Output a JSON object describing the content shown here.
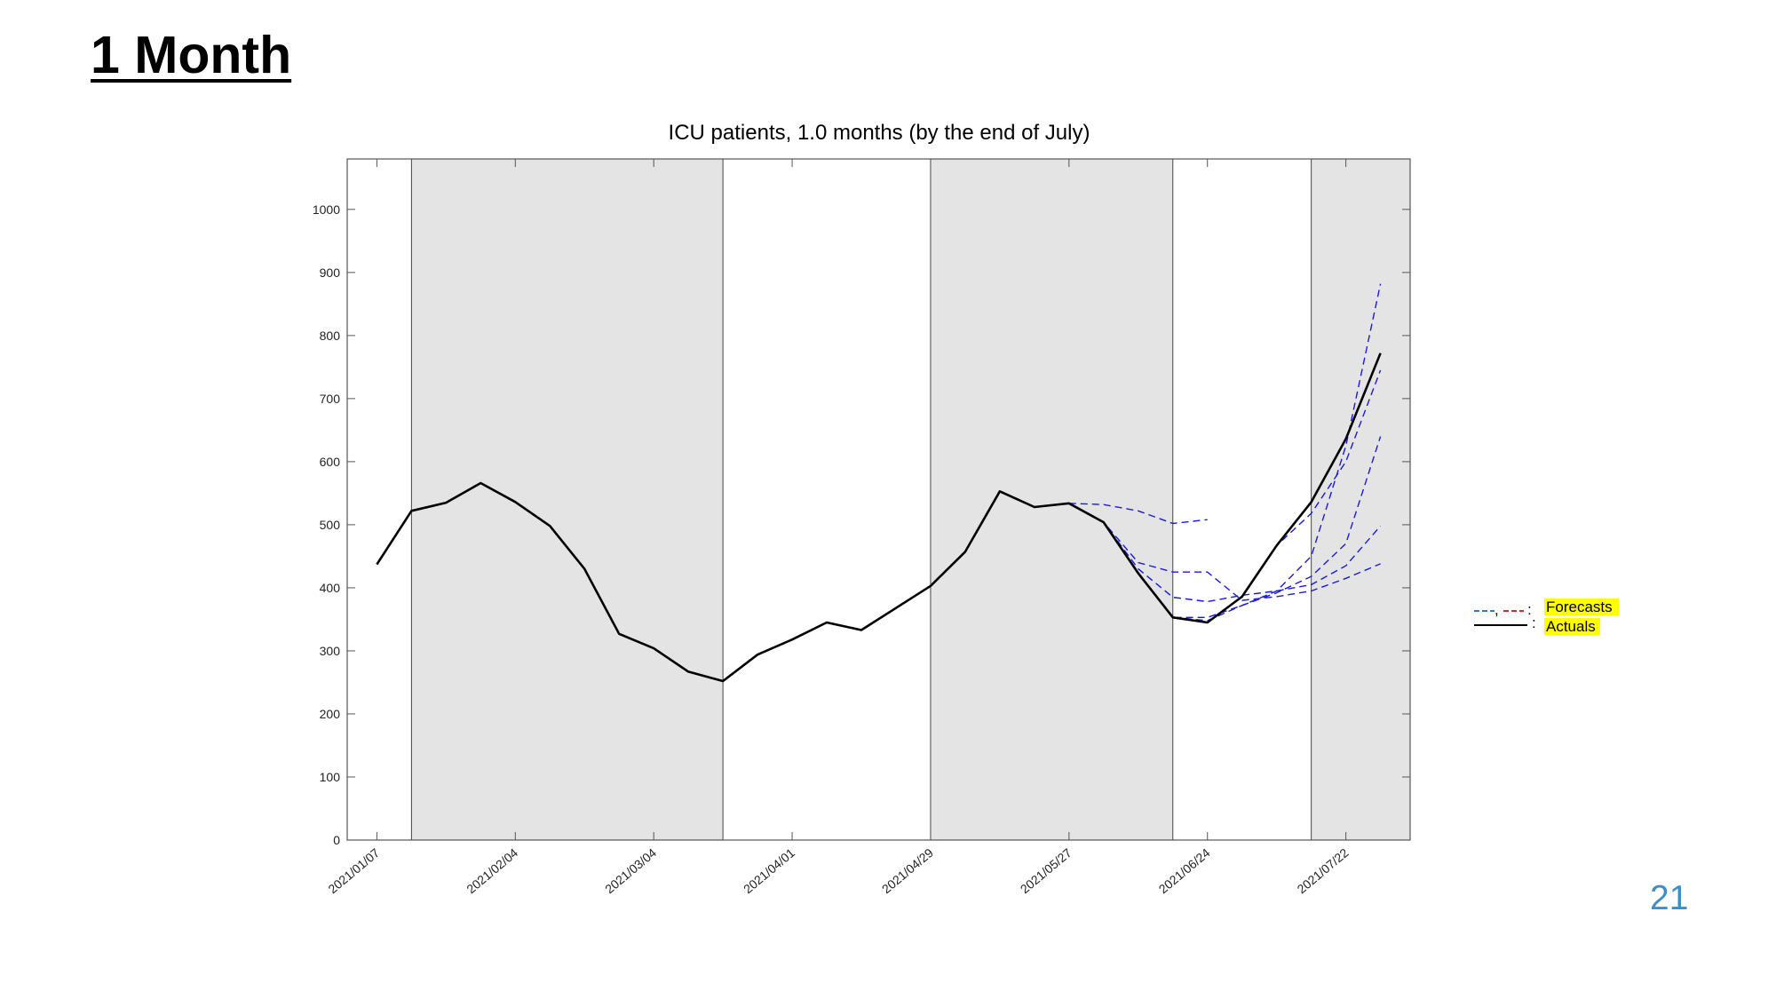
{
  "slide": {
    "title": "1 Month",
    "page_number": "21"
  },
  "colors": {
    "actual": "#000000",
    "forecast": "#1a1adc",
    "legend_red": "#e8232a",
    "legend_blue": "#2b7bd8",
    "shade": "#e4e4e4",
    "highlight": "#ffff00",
    "page_number": "#3d8ec9"
  },
  "chart_data": {
    "type": "line",
    "title": "ICU patients, 1.0 months (by the end of July)",
    "xlabel": "",
    "ylabel": "",
    "ylim": [
      0,
      1080
    ],
    "xlim": [
      "2021-01-01",
      "2021-08-04"
    ],
    "x_ticks": [
      "2021/01/07",
      "2021/02/04",
      "2021/03/04",
      "2021/04/01",
      "2021/04/29",
      "2021/05/27",
      "2021/06/24",
      "2021/07/22"
    ],
    "y_ticks": [
      0,
      100,
      200,
      300,
      400,
      500,
      600,
      700,
      800,
      900,
      1000
    ],
    "grid": false,
    "shaded_periods": [
      [
        "2021-01-14",
        "2021-03-18"
      ],
      [
        "2021-04-29",
        "2021-06-17"
      ],
      [
        "2021-07-15",
        "2021-08-04"
      ]
    ],
    "period_boundaries": [
      "2021-01-14",
      "2021-03-18",
      "2021-04-29",
      "2021-06-17",
      "2021-07-15"
    ],
    "series": [
      {
        "kind": "actual",
        "x": [
          "2021-01-07",
          "2021-01-14",
          "2021-01-21",
          "2021-01-28",
          "2021-02-04",
          "2021-02-11",
          "2021-02-18",
          "2021-02-25",
          "2021-03-04",
          "2021-03-11",
          "2021-03-18",
          "2021-03-25",
          "2021-04-01",
          "2021-04-08",
          "2021-04-15",
          "2021-04-22",
          "2021-04-29",
          "2021-05-06",
          "2021-05-13",
          "2021-05-20",
          "2021-05-27",
          "2021-06-03",
          "2021-06-10",
          "2021-06-17",
          "2021-06-24",
          "2021-07-01",
          "2021-07-08",
          "2021-07-15",
          "2021-07-22",
          "2021-07-29"
        ],
        "y": [
          437,
          522,
          535,
          566,
          536,
          498,
          430,
          327,
          304,
          267,
          252,
          294,
          318,
          345,
          333,
          368,
          403,
          457,
          553,
          528,
          534,
          504,
          423,
          353,
          345,
          386,
          467,
          536,
          636,
          772
        ]
      },
      {
        "kind": "forecast",
        "x": [
          "2021-05-27",
          "2021-06-03",
          "2021-06-10",
          "2021-06-17",
          "2021-06-24"
        ],
        "y": [
          534,
          532,
          522,
          502,
          508
        ]
      },
      {
        "kind": "forecast",
        "x": [
          "2021-05-27",
          "2021-06-03",
          "2021-06-10",
          "2021-06-17",
          "2021-06-24",
          "2021-07-01",
          "2021-07-08",
          "2021-07-15",
          "2021-07-22",
          "2021-07-29"
        ],
        "y": [
          534,
          504,
          440,
          425,
          425,
          380,
          386,
          395,
          415,
          438
        ]
      },
      {
        "kind": "forecast",
        "x": [
          "2021-06-03",
          "2021-06-10",
          "2021-06-17",
          "2021-06-24",
          "2021-07-01",
          "2021-07-08",
          "2021-07-15",
          "2021-07-22",
          "2021-07-29"
        ],
        "y": [
          504,
          430,
          385,
          378,
          388,
          395,
          405,
          435,
          498
        ]
      },
      {
        "kind": "forecast",
        "x": [
          "2021-06-10",
          "2021-06-17",
          "2021-06-24",
          "2021-07-01",
          "2021-07-08",
          "2021-07-15",
          "2021-07-22",
          "2021-07-29"
        ],
        "y": [
          423,
          353,
          353,
          372,
          392,
          418,
          470,
          640
        ]
      },
      {
        "kind": "forecast",
        "x": [
          "2021-06-17",
          "2021-06-24",
          "2021-07-01",
          "2021-07-08",
          "2021-07-15",
          "2021-07-22",
          "2021-07-29"
        ],
        "y": [
          353,
          348,
          372,
          395,
          450,
          625,
          882
        ]
      },
      {
        "kind": "forecast",
        "x": [
          "2021-07-01",
          "2021-07-08",
          "2021-07-15",
          "2021-07-22",
          "2021-07-29"
        ],
        "y": [
          386,
          467,
          518,
          600,
          745
        ]
      }
    ],
    "legend": [
      {
        "label": "Forecasts",
        "sample": "—, — :"
      },
      {
        "label": "Actuals",
        "sample": ":"
      }
    ],
    "legend_position": "right"
  }
}
